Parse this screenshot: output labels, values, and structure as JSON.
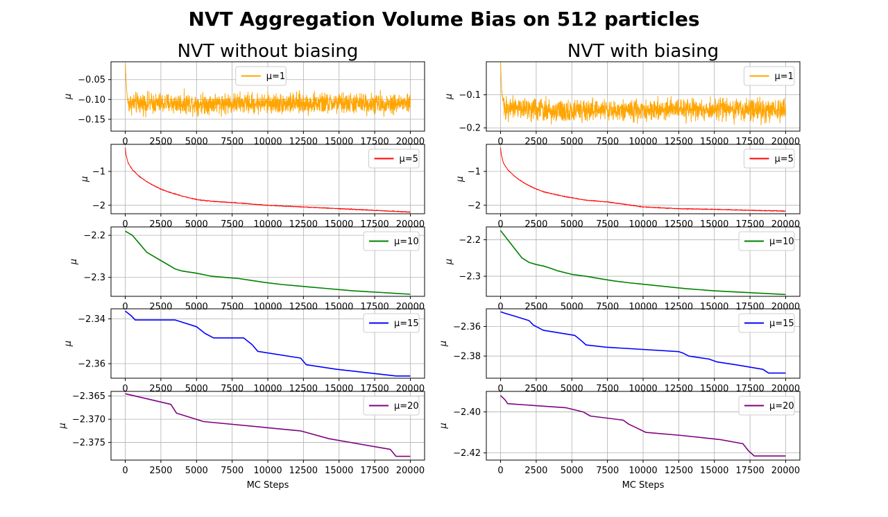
{
  "figure": {
    "title": "NVT Aggregation Volume Bias on 512 particles",
    "columns": [
      "NVT without biasing",
      "NVT with biasing"
    ]
  },
  "chart_data": [
    {
      "type": "line",
      "column": 0,
      "row": 0,
      "series": [
        {
          "name": "μ=1",
          "color": "#ffa500",
          "x": [
            0,
            100,
            200,
            2000,
            4000,
            6000,
            8000,
            10000,
            12000,
            14000,
            16000,
            18000,
            20000
          ],
          "y": [
            -0.01,
            -0.08,
            -0.11,
            -0.11,
            -0.11,
            -0.11,
            -0.11,
            -0.11,
            -0.11,
            -0.11,
            -0.11,
            -0.11,
            -0.11
          ],
          "noise": 0.022
        }
      ],
      "xlim": [
        -1000,
        21000
      ],
      "ylim": [
        -0.18,
        -0.005
      ],
      "xticks": [
        0,
        2500,
        5000,
        7500,
        10000,
        12500,
        15000,
        17500,
        20000
      ],
      "xticklabels": [
        "0",
        "2500",
        "5000",
        "7500",
        "10000",
        "12500",
        "15000",
        "17500",
        "20000"
      ],
      "yticks": [
        -0.05,
        -0.1,
        -0.15
      ],
      "yticklabels": [
        "−0.05",
        "−0.10",
        "−0.15"
      ],
      "ylabel": "μ",
      "xlabel": "",
      "grid": true,
      "legend": "top-center"
    },
    {
      "type": "line",
      "column": 0,
      "row": 1,
      "series": [
        {
          "name": "μ=5",
          "color": "#ff0000",
          "x": [
            0,
            50,
            200,
            500,
            1000,
            1500,
            2000,
            2500,
            3000,
            4000,
            5000,
            6000,
            7500,
            10000,
            12500,
            15000,
            17500,
            20000
          ],
          "y": [
            -0.3,
            -0.5,
            -0.75,
            -0.95,
            -1.15,
            -1.3,
            -1.42,
            -1.52,
            -1.6,
            -1.73,
            -1.83,
            -1.88,
            -1.92,
            -2.0,
            -2.05,
            -2.1,
            -2.15,
            -2.2
          ],
          "noise": 0.01
        }
      ],
      "xlim": [
        -1000,
        21000
      ],
      "ylim": [
        -2.25,
        -0.2
      ],
      "xticks": [
        0,
        2500,
        5000,
        7500,
        10000,
        12500,
        15000,
        17500,
        20000
      ],
      "xticklabels": [
        "0",
        "2500",
        "5000",
        "7500",
        "10000",
        "12500",
        "15000",
        "17500",
        "20000"
      ],
      "yticks": [
        -1,
        -2
      ],
      "yticklabels": [
        "−1",
        "−2"
      ],
      "ylabel": "μ",
      "xlabel": "",
      "grid": true,
      "legend": "top-right"
    },
    {
      "type": "line",
      "column": 0,
      "row": 2,
      "series": [
        {
          "name": "μ=10",
          "color": "#008000",
          "x": [
            0,
            500,
            1000,
            1500,
            2000,
            2500,
            3000,
            3500,
            4000,
            5000,
            6000,
            7000,
            8000,
            9000,
            10000,
            11000,
            12000,
            13000,
            14000,
            15000,
            16000,
            17000,
            18000,
            19000,
            20000
          ],
          "y": [
            -2.19,
            -2.2,
            -2.22,
            -2.24,
            -2.25,
            -2.26,
            -2.27,
            -2.28,
            -2.285,
            -2.29,
            -2.297,
            -2.3,
            -2.303,
            -2.308,
            -2.313,
            -2.317,
            -2.32,
            -2.323,
            -2.326,
            -2.329,
            -2.332,
            -2.334,
            -2.336,
            -2.338,
            -2.34
          ],
          "noise": 0
        }
      ],
      "xlim": [
        -1000,
        21000
      ],
      "ylim": [
        -2.345,
        -2.18
      ],
      "xticks": [
        0,
        2500,
        5000,
        7500,
        10000,
        12500,
        15000,
        17500,
        20000
      ],
      "xticklabels": [
        "0",
        "2500",
        "5000",
        "7500",
        "10000",
        "12500",
        "15000",
        "17500",
        "20000"
      ],
      "yticks": [
        -2.2,
        -2.3
      ],
      "yticklabels": [
        "−2.2",
        "−2.3"
      ],
      "ylabel": "μ",
      "xlabel": "",
      "grid": true,
      "legend": "top-right"
    },
    {
      "type": "line",
      "column": 0,
      "row": 3,
      "series": [
        {
          "name": "μ=15",
          "color": "#0000ff",
          "x": [
            0,
            400,
            700,
            3500,
            5000,
            5600,
            6200,
            8300,
            8900,
            9300,
            12300,
            12700,
            14800,
            19000,
            20000
          ],
          "y": [
            -2.3365,
            -2.3385,
            -2.3405,
            -2.3405,
            -2.3435,
            -2.3465,
            -2.3485,
            -2.3485,
            -2.3515,
            -2.3545,
            -2.3575,
            -2.3605,
            -2.3625,
            -2.3655,
            -2.3655
          ],
          "noise": 0
        }
      ],
      "xlim": [
        -1000,
        21000
      ],
      "ylim": [
        -2.3665,
        -2.3355
      ],
      "xticks": [
        0,
        2500,
        5000,
        7500,
        10000,
        12500,
        15000,
        17500,
        20000
      ],
      "xticklabels": [
        "0",
        "2500",
        "5000",
        "7500",
        "10000",
        "12500",
        "15000",
        "17500",
        "20000"
      ],
      "yticks": [
        -2.34,
        -2.36
      ],
      "yticklabels": [
        "−2.34",
        "−2.36"
      ],
      "ylabel": "μ",
      "xlabel": "",
      "grid": true,
      "legend": "top-right"
    },
    {
      "type": "line",
      "column": 0,
      "row": 4,
      "series": [
        {
          "name": "μ=20",
          "color": "#800080",
          "x": [
            0,
            3200,
            3600,
            5500,
            12300,
            14300,
            18600,
            19000,
            20000
          ],
          "y": [
            -2.3645,
            -2.3668,
            -2.3687,
            -2.3705,
            -2.3725,
            -2.3742,
            -2.3765,
            -2.378,
            -2.378
          ],
          "noise": 0
        }
      ],
      "xlim": [
        -1000,
        21000
      ],
      "ylim": [
        -2.3788,
        -2.364
      ],
      "xticks": [
        0,
        2500,
        5000,
        7500,
        10000,
        12500,
        15000,
        17500,
        20000
      ],
      "xticklabels": [
        "0",
        "2500",
        "5000",
        "7500",
        "10000",
        "12500",
        "15000",
        "17500",
        "20000"
      ],
      "yticks": [
        -2.365,
        -2.37,
        -2.375
      ],
      "yticklabels": [
        "−2.365",
        "−2.370",
        "−2.375"
      ],
      "ylabel": "μ",
      "xlabel": "MC Steps",
      "grid": true,
      "legend": "top-right"
    },
    {
      "type": "line",
      "column": 1,
      "row": 0,
      "series": [
        {
          "name": "μ=1",
          "color": "#ffa500",
          "x": [
            0,
            100,
            300,
            2000,
            4000,
            6000,
            8000,
            10000,
            12000,
            14000,
            16000,
            18000,
            20000
          ],
          "y": [
            -0.01,
            -0.1,
            -0.14,
            -0.145,
            -0.148,
            -0.146,
            -0.145,
            -0.146,
            -0.145,
            -0.146,
            -0.145,
            -0.146,
            -0.145
          ],
          "noise": 0.028
        }
      ],
      "xlim": [
        -1000,
        21000
      ],
      "ylim": [
        -0.21,
        0.0
      ],
      "xticks": [
        0,
        2500,
        5000,
        7500,
        10000,
        12500,
        15000,
        17500,
        20000
      ],
      "xticklabels": [
        "0",
        "2500",
        "5000",
        "7500",
        "10000",
        "12500",
        "15000",
        "17500",
        "20000"
      ],
      "yticks": [
        -0.1,
        -0.2
      ],
      "yticklabels": [
        "−0.1",
        "−0.2"
      ],
      "ylabel": "μ",
      "xlabel": "",
      "grid": true,
      "legend": "top-right"
    },
    {
      "type": "line",
      "column": 1,
      "row": 1,
      "series": [
        {
          "name": "μ=5",
          "color": "#ff0000",
          "x": [
            0,
            50,
            200,
            500,
            1000,
            1500,
            2000,
            2500,
            3000,
            4000,
            5000,
            6000,
            7500,
            10000,
            12500,
            15000,
            17500,
            20000
          ],
          "y": [
            -0.3,
            -0.5,
            -0.75,
            -0.95,
            -1.15,
            -1.3,
            -1.42,
            -1.52,
            -1.6,
            -1.7,
            -1.78,
            -1.85,
            -1.9,
            -2.05,
            -2.1,
            -2.12,
            -2.15,
            -2.17
          ],
          "noise": 0.01
        }
      ],
      "xlim": [
        -1000,
        21000
      ],
      "ylim": [
        -2.25,
        -0.2
      ],
      "xticks": [
        0,
        2500,
        5000,
        7500,
        10000,
        12500,
        15000,
        17500,
        20000
      ],
      "xticklabels": [
        "0",
        "2500",
        "5000",
        "7500",
        "10000",
        "12500",
        "15000",
        "17500",
        "20000"
      ],
      "yticks": [
        -1,
        -2
      ],
      "yticklabels": [
        "−1",
        "−2"
      ],
      "ylabel": "μ",
      "xlabel": "",
      "grid": true,
      "legend": "top-right"
    },
    {
      "type": "line",
      "column": 1,
      "row": 2,
      "series": [
        {
          "name": "μ=10",
          "color": "#008000",
          "x": [
            0,
            500,
            1000,
            1500,
            2000,
            2500,
            3000,
            3500,
            4000,
            5000,
            6000,
            7000,
            8000,
            9000,
            10000,
            11000,
            12000,
            13000,
            14000,
            15000,
            16000,
            17000,
            18000,
            19000,
            20000
          ],
          "y": [
            -2.175,
            -2.2,
            -2.225,
            -2.25,
            -2.262,
            -2.268,
            -2.272,
            -2.278,
            -2.285,
            -2.295,
            -2.3,
            -2.307,
            -2.313,
            -2.318,
            -2.322,
            -2.326,
            -2.33,
            -2.334,
            -2.337,
            -2.34,
            -2.342,
            -2.344,
            -2.346,
            -2.348,
            -2.35
          ],
          "noise": 0
        }
      ],
      "xlim": [
        -1000,
        21000
      ],
      "ylim": [
        -2.355,
        -2.165
      ],
      "xticks": [
        0,
        2500,
        5000,
        7500,
        10000,
        12500,
        15000,
        17500,
        20000
      ],
      "xticklabels": [
        "0",
        "2500",
        "5000",
        "7500",
        "10000",
        "12500",
        "15000",
        "17500",
        "20000"
      ],
      "yticks": [
        -2.2,
        -2.3
      ],
      "yticklabels": [
        "−2.2",
        "−2.3"
      ],
      "ylabel": "μ",
      "xlabel": "",
      "grid": true,
      "legend": "top-right"
    },
    {
      "type": "line",
      "column": 1,
      "row": 3,
      "series": [
        {
          "name": "μ=15",
          "color": "#0000ff",
          "x": [
            0,
            300,
            1000,
            2000,
            2300,
            3000,
            5200,
            5600,
            6000,
            7400,
            12500,
            12800,
            13200,
            14600,
            15200,
            16600,
            18400,
            18800,
            20000
          ],
          "y": [
            -2.35,
            -2.351,
            -2.353,
            -2.356,
            -2.359,
            -2.3625,
            -2.366,
            -2.369,
            -2.3725,
            -2.374,
            -2.377,
            -2.378,
            -2.38,
            -2.382,
            -2.384,
            -2.386,
            -2.389,
            -2.3915,
            -2.3915
          ],
          "noise": 0
        }
      ],
      "xlim": [
        -1000,
        21000
      ],
      "ylim": [
        -2.395,
        -2.348
      ],
      "xticks": [
        0,
        2500,
        5000,
        7500,
        10000,
        12500,
        15000,
        17500,
        20000
      ],
      "xticklabels": [
        "0",
        "2500",
        "5000",
        "7500",
        "10000",
        "12500",
        "15000",
        "17500",
        "20000"
      ],
      "yticks": [
        -2.36,
        -2.38
      ],
      "yticklabels": [
        "−2.36",
        "−2.38"
      ],
      "ylabel": "μ",
      "xlabel": "",
      "grid": true,
      "legend": "top-right"
    },
    {
      "type": "line",
      "column": 1,
      "row": 4,
      "series": [
        {
          "name": "μ=20",
          "color": "#800080",
          "x": [
            0,
            300,
            500,
            4600,
            5800,
            6300,
            8600,
            9000,
            9600,
            10200,
            12700,
            15400,
            17000,
            17400,
            17800,
            20000
          ],
          "y": [
            -2.392,
            -2.394,
            -2.396,
            -2.398,
            -2.4,
            -2.402,
            -2.404,
            -2.406,
            -2.408,
            -2.41,
            -2.4115,
            -2.4135,
            -2.4155,
            -2.419,
            -2.4215,
            -2.4215
          ],
          "noise": 0
        }
      ],
      "xlim": [
        -1000,
        21000
      ],
      "ylim": [
        -2.4235,
        -2.39
      ],
      "xticks": [
        0,
        2500,
        5000,
        7500,
        10000,
        12500,
        15000,
        17500,
        20000
      ],
      "xticklabels": [
        "0",
        "2500",
        "5000",
        "7500",
        "10000",
        "12500",
        "15000",
        "17500",
        "20000"
      ],
      "yticks": [
        -2.4,
        -2.42
      ],
      "yticklabels": [
        "−2.40",
        "−2.42"
      ],
      "ylabel": "μ",
      "xlabel": "MC Steps",
      "grid": true,
      "legend": "top-right"
    }
  ]
}
